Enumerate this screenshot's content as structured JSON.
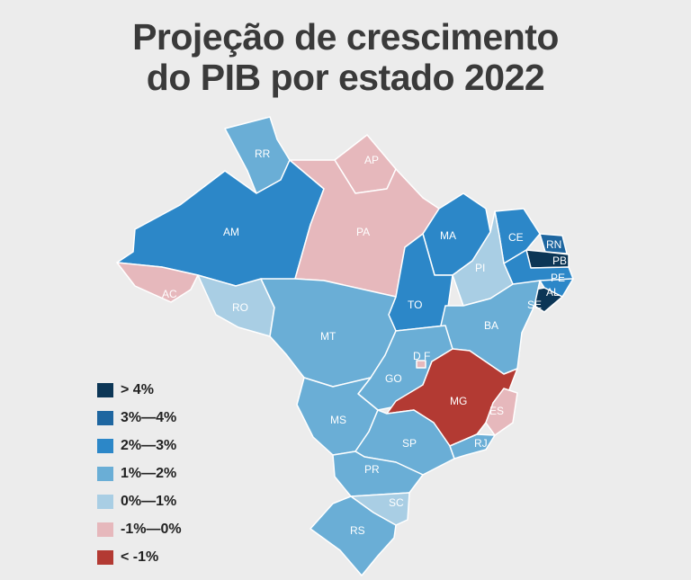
{
  "title": {
    "line1": "Projeção de crescimento",
    "line2": "do PIB por estado 2022"
  },
  "legend": [
    {
      "label": "> 4%",
      "color": "#0c3656"
    },
    {
      "label": "3%—4%",
      "color": "#1e66a0"
    },
    {
      "label": "2%—3%",
      "color": "#2c87c8"
    },
    {
      "label": "1%—2%",
      "color": "#6aaed6"
    },
    {
      "label": "0%—1%",
      "color": "#a9cee4"
    },
    {
      "label": "-1%—0%",
      "color": "#e6b8bc"
    },
    {
      "label": "< -1%",
      "color": "#b33a33"
    }
  ],
  "states": {
    "RR": {
      "label": "RR",
      "category": "1%—2%"
    },
    "AP": {
      "label": "AP",
      "category": "-1%—0%"
    },
    "AM": {
      "label": "AM",
      "category": "2%—3%"
    },
    "PA": {
      "label": "PA",
      "category": "-1%—0%"
    },
    "MA": {
      "label": "MA",
      "category": "2%—3%"
    },
    "CE": {
      "label": "CE",
      "category": "2%—3%"
    },
    "RN": {
      "label": "RN",
      "category": "3%—4%"
    },
    "PB": {
      "label": "PB",
      "category": "> 4%"
    },
    "PE": {
      "label": "PE",
      "category": "2%—3%"
    },
    "AL": {
      "label": "AL",
      "category": "2%—3%"
    },
    "SE": {
      "label": "SE",
      "category": "> 4%"
    },
    "AC": {
      "label": "AC",
      "category": "-1%—0%"
    },
    "RO": {
      "label": "RO",
      "category": "0%—1%"
    },
    "PI": {
      "label": "PI",
      "category": "0%—1%"
    },
    "TO": {
      "label": "TO",
      "category": "2%—3%"
    },
    "BA": {
      "label": "BA",
      "category": "1%—2%"
    },
    "MT": {
      "label": "MT",
      "category": "1%—2%"
    },
    "DF": {
      "label": "D F",
      "category": "-1%—0%"
    },
    "GO": {
      "label": "GO",
      "category": "1%—2%"
    },
    "MG": {
      "label": "MG",
      "category": "< -1%"
    },
    "ES": {
      "label": "ES",
      "category": "-1%—0%"
    },
    "MS": {
      "label": "MS",
      "category": "1%—2%"
    },
    "SP": {
      "label": "SP",
      "category": "1%—2%"
    },
    "RJ": {
      "label": "RJ",
      "category": "1%—2%"
    },
    "PR": {
      "label": "PR",
      "category": "1%—2%"
    },
    "SC": {
      "label": "SC",
      "category": "0%—1%"
    },
    "RS": {
      "label": "RS",
      "category": "1%—2%"
    }
  }
}
